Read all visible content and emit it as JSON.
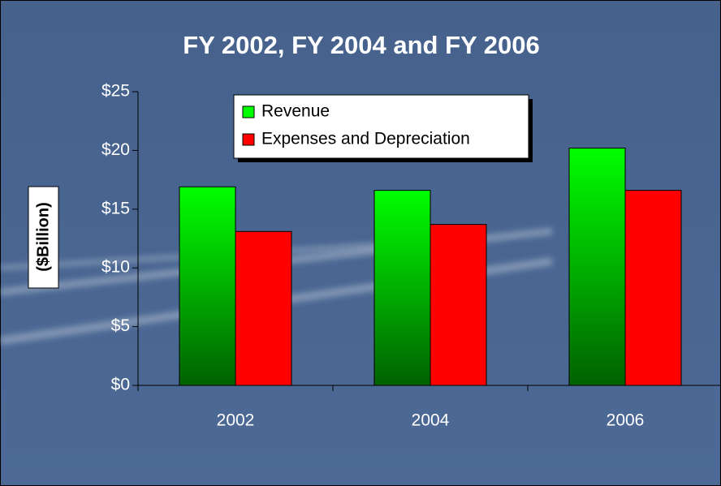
{
  "chart_data": {
    "type": "bar",
    "title": "FY 2002, FY 2004 and FY 2006",
    "y_label": "($Billion)",
    "categories": [
      "2002",
      "2004",
      "2006"
    ],
    "series": [
      {
        "name": "Revenue",
        "color": "#00ff00",
        "gradient": true,
        "values": [
          16.9,
          16.6,
          20.2
        ]
      },
      {
        "name": "Expenses and Depreciation",
        "color": "#ff0000",
        "values": [
          13.1,
          13.7,
          16.6
        ]
      }
    ],
    "ylim": [
      0,
      25
    ],
    "yticks": [
      {
        "value": 0,
        "label": "$0"
      },
      {
        "value": 5,
        "label": "$5"
      },
      {
        "value": 10,
        "label": "$10"
      },
      {
        "value": 15,
        "label": "$15"
      },
      {
        "value": 20,
        "label": "$20"
      },
      {
        "value": 25,
        "label": "$25"
      }
    ]
  }
}
